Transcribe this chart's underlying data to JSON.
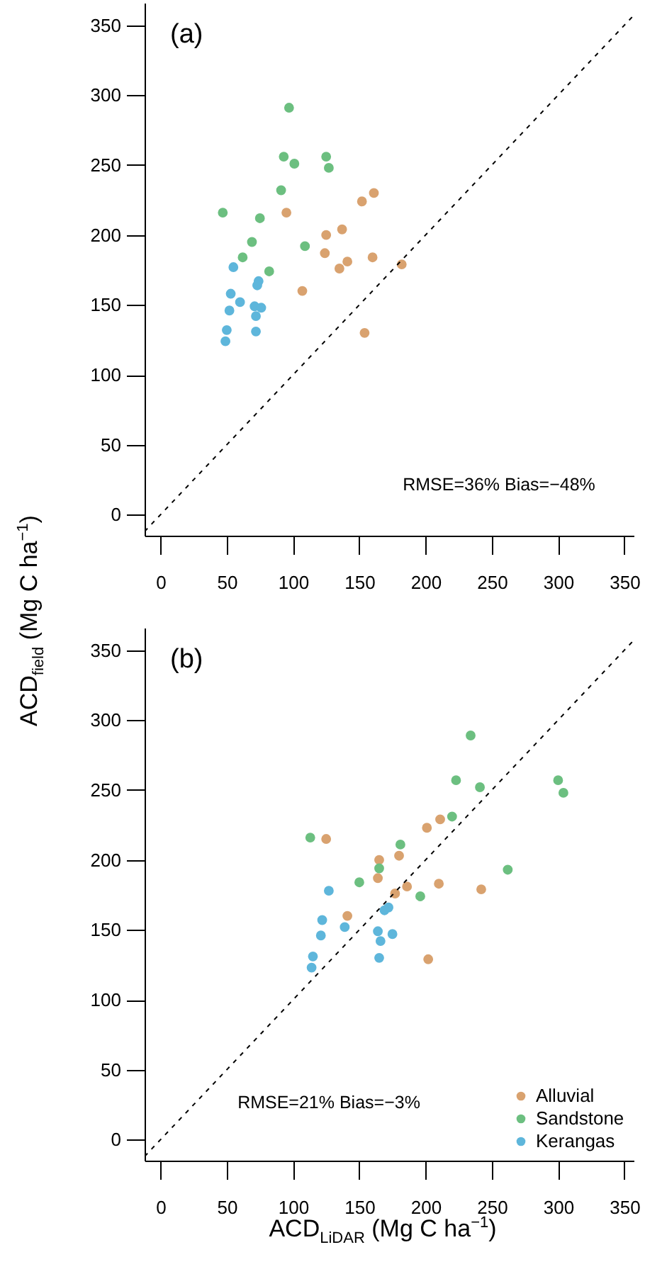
{
  "chart_data": [
    {
      "type": "scatter",
      "xlim": [
        -12,
        357
      ],
      "ylim": [
        -15,
        366
      ],
      "xticks": [
        0,
        50,
        100,
        150,
        200,
        250,
        300,
        350
      ],
      "yticks": [
        0,
        50,
        100,
        150,
        200,
        250,
        300,
        350
      ],
      "grid": false,
      "legend": false,
      "marker": "circle",
      "annotations": [
        "(a)",
        "RMSE=36% Bias=−48%"
      ],
      "series": [
        {
          "color": "#d9a26f",
          "x": [
            95,
            161,
            152,
            137,
            125,
            124,
            141,
            135,
            160,
            107,
            154,
            182
          ],
          "values": [
            216,
            230,
            224,
            204,
            200,
            187,
            181,
            176,
            184,
            160,
            130,
            179
          ]
        },
        {
          "color": "#6cbf80",
          "x": [
            97,
            93,
            101,
            125,
            127,
            91,
            47,
            75,
            69,
            62,
            82,
            109
          ],
          "values": [
            291,
            256,
            251,
            256,
            248,
            232,
            216,
            212,
            195,
            184,
            174,
            192
          ]
        },
        {
          "color": "#5eb6db",
          "x": [
            55,
            53,
            60,
            52,
            50,
            49,
            74,
            73,
            71,
            76,
            72,
            72
          ],
          "values": [
            177,
            158,
            152,
            146,
            132,
            124,
            167,
            164,
            149,
            148,
            142,
            131
          ]
        },
        {
          "type": "line",
          "marker": "none",
          "color": "#000000",
          "line_style": "dashed",
          "x": [
            -12,
            357
          ],
          "values": [
            -12,
            357
          ]
        }
      ]
    },
    {
      "type": "scatter",
      "xlim": [
        -12,
        357
      ],
      "ylim": [
        -15,
        366
      ],
      "xticks": [
        0,
        50,
        100,
        150,
        200,
        250,
        300,
        350
      ],
      "yticks": [
        0,
        50,
        100,
        150,
        200,
        250,
        300,
        350
      ],
      "grid": false,
      "legend": "bottom right",
      "marker": "circle",
      "xlabel": "ACD$_{LiDAR}$ (Mg C  ha$^{−1}$)",
      "ylabel": "ACD$_{field}$ (Mg C  ha$^{−1}$)",
      "annotations": [
        "(b)",
        "RMSE=21% Bias=−3%"
      ],
      "series": [
        {
          "name": "Alluvial",
          "color": "#d9a26f",
          "x": [
            125,
            211,
            201,
            165,
            180,
            164,
            186,
            177,
            210,
            242,
            141,
            202
          ],
          "values": [
            215,
            229,
            223,
            200,
            203,
            187,
            181,
            176,
            183,
            179,
            160,
            129
          ]
        },
        {
          "name": "Sandstone",
          "color": "#6cbf80",
          "x": [
            234,
            223,
            241,
            300,
            304,
            220,
            113,
            181,
            165,
            150,
            196,
            262
          ],
          "values": [
            289,
            257,
            252,
            257,
            248,
            231,
            216,
            211,
            194,
            184,
            174,
            193
          ]
        },
        {
          "name": "Kerangas",
          "color": "#5eb6db",
          "x": [
            127,
            122,
            139,
            121,
            115,
            114,
            172,
            169,
            164,
            175,
            166,
            165
          ],
          "values": [
            178,
            157,
            152,
            146,
            131,
            123,
            166,
            164,
            149,
            147,
            142,
            130
          ]
        },
        {
          "type": "line",
          "marker": "none",
          "color": "#000000",
          "line_style": "dashed",
          "x": [
            -12,
            357
          ],
          "values": [
            -12,
            357
          ]
        }
      ]
    }
  ]
}
